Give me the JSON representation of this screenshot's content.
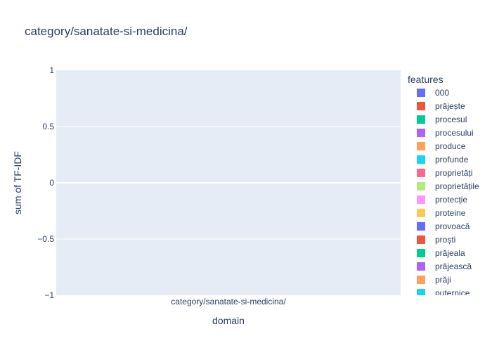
{
  "chart_data": {
    "type": "bar",
    "title": "category/sanatate-si-medicina/",
    "xlabel": "domain",
    "ylabel": "sum of TF-IDF",
    "categories": [
      "category/sanatate-si-medicina/"
    ],
    "ylim": [
      -1,
      1
    ],
    "yticks": [
      "1",
      "0.5",
      "0",
      "−0.5",
      "−1"
    ],
    "ytick_values": [
      1,
      0.5,
      0,
      -0.5,
      -1
    ],
    "grid": true,
    "legend_title": "features",
    "legend_position": "right",
    "series": [
      {
        "name": "000",
        "color": "#636efa",
        "values": [
          0
        ]
      },
      {
        "name": "prăjește",
        "color": "#EF553B",
        "values": [
          0
        ]
      },
      {
        "name": "procesul",
        "color": "#00cc96",
        "values": [
          0
        ]
      },
      {
        "name": "procesului",
        "color": "#ab63fa",
        "values": [
          0
        ]
      },
      {
        "name": "produce",
        "color": "#FFA15A",
        "values": [
          0
        ]
      },
      {
        "name": "profunde",
        "color": "#19d3f3",
        "values": [
          0
        ]
      },
      {
        "name": "proprietăți",
        "color": "#FF6692",
        "values": [
          0
        ]
      },
      {
        "name": "proprietățile",
        "color": "#B6E880",
        "values": [
          0
        ]
      },
      {
        "name": "protecție",
        "color": "#FF97FF",
        "values": [
          0
        ]
      },
      {
        "name": "proteine",
        "color": "#FECB52",
        "values": [
          0
        ]
      },
      {
        "name": "provoacă",
        "color": "#636efa",
        "values": [
          0
        ]
      },
      {
        "name": "proști",
        "color": "#EF553B",
        "values": [
          0
        ]
      },
      {
        "name": "prăjeala",
        "color": "#00cc96",
        "values": [
          0
        ]
      },
      {
        "name": "prăjească",
        "color": "#ab63fa",
        "values": [
          0
        ]
      },
      {
        "name": "prăji",
        "color": "#FFA15A",
        "values": [
          0
        ]
      },
      {
        "name": "puternice",
        "color": "#19d3f3",
        "values": [
          0
        ]
      }
    ]
  }
}
